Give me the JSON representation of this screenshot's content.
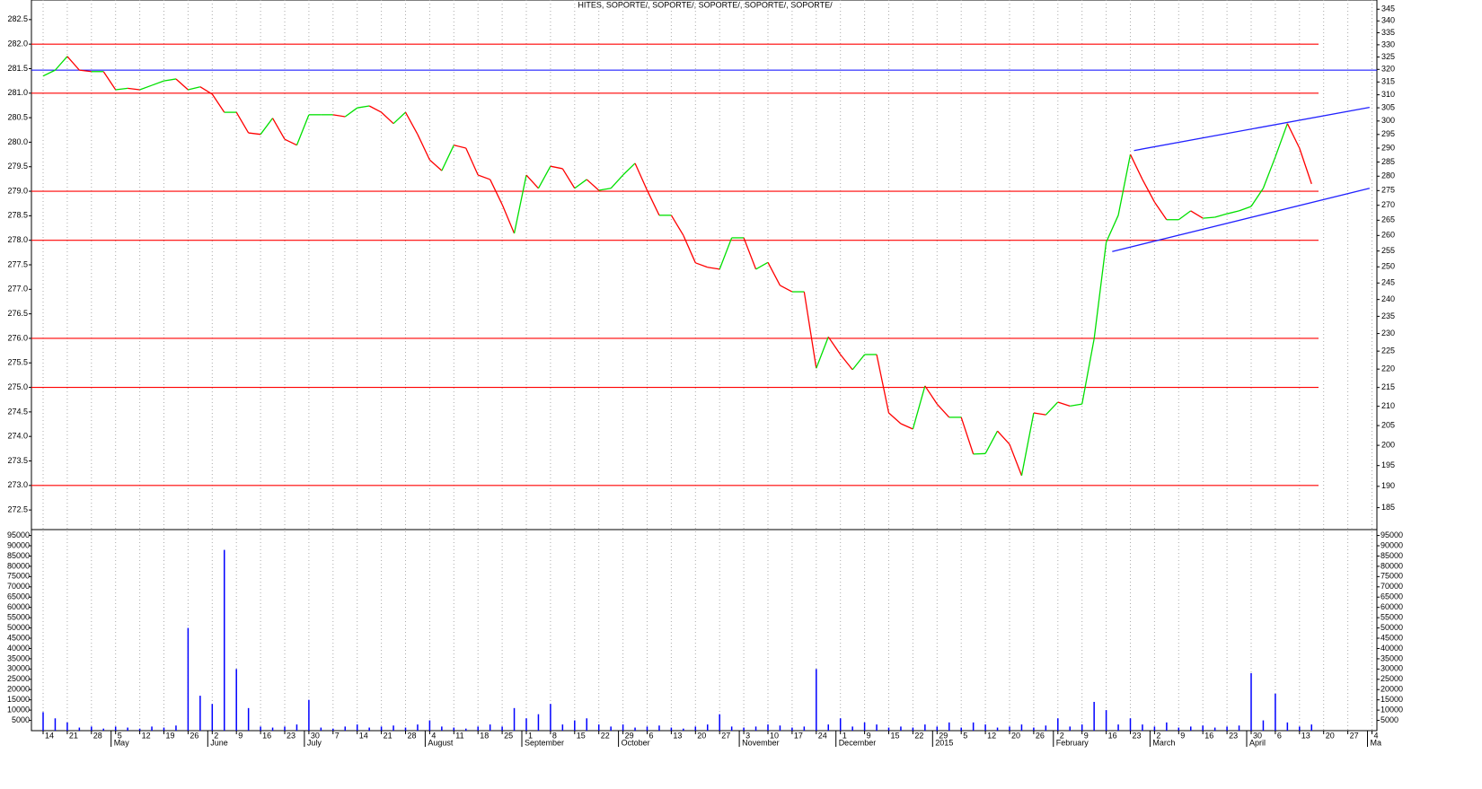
{
  "chart_data": {
    "type": "line",
    "title": "HITES, SOPORTE/, SOPORTE/, SOPORTE/, SOPORTE/, SOPORTE/",
    "categories": [
      "14",
      null,
      "21",
      null,
      "28",
      null,
      "5",
      null,
      "12",
      null,
      "19",
      null,
      "26",
      null,
      "2",
      null,
      "9",
      null,
      "16",
      null,
      "23",
      null,
      "30",
      null,
      "7",
      null,
      "14",
      null,
      "21",
      null,
      "28",
      null,
      "4",
      null,
      "11",
      null,
      "18",
      null,
      "25",
      null,
      "1",
      null,
      "8",
      null,
      "15",
      null,
      "22",
      null,
      "29",
      null,
      "6",
      null,
      "13",
      null,
      "20",
      null,
      "27",
      null,
      "3",
      null,
      "10",
      null,
      "17",
      null,
      "24",
      null,
      "1",
      null,
      "9",
      null,
      "15",
      null,
      "22",
      null,
      "29",
      null,
      "5",
      null,
      "12",
      null,
      "20",
      null,
      "26",
      null,
      "2",
      null,
      "9",
      null,
      "16",
      null,
      "23",
      null,
      "2",
      null,
      "9",
      null,
      "16",
      null,
      "23",
      null,
      "30",
      null,
      "6",
      null,
      "13",
      null,
      "20",
      null,
      "27",
      null,
      "4",
      null
    ],
    "months": [
      null,
      null,
      null,
      null,
      null,
      null,
      "May",
      null,
      null,
      null,
      null,
      null,
      null,
      null,
      "June",
      null,
      null,
      null,
      null,
      null,
      null,
      null,
      "July",
      null,
      null,
      null,
      null,
      null,
      null,
      null,
      null,
      null,
      "August",
      null,
      null,
      null,
      null,
      null,
      null,
      null,
      "September",
      null,
      null,
      null,
      null,
      null,
      null,
      null,
      "October",
      null,
      null,
      null,
      null,
      null,
      null,
      null,
      null,
      null,
      "November",
      null,
      null,
      null,
      null,
      null,
      null,
      null,
      "December",
      null,
      null,
      null,
      null,
      null,
      null,
      null,
      "2015",
      null,
      null,
      null,
      null,
      null,
      null,
      null,
      null,
      null,
      "February",
      null,
      null,
      null,
      null,
      null,
      null,
      null,
      "March",
      null,
      null,
      null,
      null,
      null,
      null,
      null,
      "April",
      null,
      null,
      null,
      null,
      null,
      null,
      null,
      null,
      null,
      "Ma",
      null
    ],
    "values": [
      281.35,
      281.47,
      281.75,
      281.47,
      281.44,
      281.44,
      281.07,
      281.1,
      281.07,
      281.16,
      281.25,
      281.29,
      281.07,
      281.13,
      280.98,
      280.61,
      280.61,
      280.19,
      280.16,
      280.49,
      280.06,
      279.94,
      280.56,
      280.56,
      280.56,
      280.52,
      280.7,
      280.74,
      280.61,
      280.38,
      280.61,
      280.16,
      279.64,
      279.42,
      279.94,
      279.88,
      279.33,
      279.24,
      278.73,
      278.14,
      279.33,
      279.06,
      279.51,
      279.46,
      279.06,
      279.24,
      279.02,
      279.06,
      279.33,
      279.57,
      279.02,
      278.51,
      278.51,
      278.1,
      277.54,
      277.45,
      277.41,
      278.05,
      278.05,
      277.41,
      277.55,
      277.08,
      276.95,
      276.95,
      275.39,
      276.03,
      275.67,
      275.36,
      275.67,
      275.67,
      274.48,
      274.26,
      274.15,
      275.03,
      274.66,
      274.39,
      274.39,
      273.64,
      273.65,
      274.11,
      273.84,
      273.2,
      274.48,
      274.44,
      274.7,
      274.62,
      274.66,
      275.99,
      277.96,
      278.51,
      279.75,
      279.24,
      278.78,
      278.42,
      278.42,
      278.6,
      278.45,
      278.47,
      278.54,
      278.6,
      278.69,
      279.06,
      279.7,
      280.38,
      279.88,
      279.15,
      null,
      null,
      null,
      null,
      null,
      null
    ],
    "up_color": "#00e000",
    "down_color": "#ff0000",
    "ylim": [
      272.1,
      282.9
    ],
    "yticks": [
      272.5,
      {
        "value": 273,
        "label": "273.0"
      },
      273.5,
      {
        "value": 274,
        "label": "274.0"
      },
      274.5,
      {
        "value": 275,
        "label": "275.0"
      },
      275.5,
      {
        "value": 276,
        "label": "276.0"
      },
      276.5,
      {
        "value": 277,
        "label": "277.0"
      },
      277.5,
      {
        "value": 278,
        "label": "278.0"
      },
      278.5,
      {
        "value": 279,
        "label": "279.0"
      },
      279.5,
      {
        "value": 280,
        "label": "280.0"
      },
      280.5,
      {
        "value": 281,
        "label": "281.0"
      },
      281.5,
      {
        "value": 282,
        "label": "282.0"
      },
      282.5
    ],
    "y2lim": [
      180,
      349
    ],
    "y2_log": true,
    "y2ticks": [
      185,
      190,
      195,
      200,
      205,
      210,
      215,
      220,
      225,
      230,
      235,
      240,
      245,
      250,
      255,
      260,
      265,
      270,
      275,
      280,
      285,
      290,
      295,
      300,
      305,
      310,
      315,
      320,
      325,
      330,
      335,
      340,
      345
    ],
    "support_levels": [
      282,
      281,
      279,
      278,
      276,
      275,
      273
    ],
    "support_color": "#ff0000",
    "resistance_levels": [
      281.47
    ],
    "resistance_color": "#0000ff",
    "trendlines": [
      {
        "x": [
          90.3,
          109.8
        ],
        "y": [
          279.83,
          280.71
        ]
      },
      {
        "x": [
          88.5,
          109.8
        ],
        "y": [
          277.77,
          279.06
        ]
      }
    ],
    "trendline_color": "#2020ff",
    "grid": true,
    "volume": {
      "type": "bar",
      "color": "#0000ff",
      "ylim": [
        0,
        97000
      ],
      "yticks": [
        5000,
        10000,
        15000,
        20000,
        25000,
        30000,
        35000,
        40000,
        45000,
        50000,
        55000,
        60000,
        65000,
        70000,
        75000,
        80000,
        85000,
        90000,
        95000
      ],
      "values": [
        9000,
        6000,
        4000,
        1500,
        2000,
        1000,
        2000,
        1500,
        1000,
        2000,
        1500,
        2500,
        50000,
        17000,
        13000,
        88000,
        30000,
        11000,
        2000,
        1500,
        2000,
        3000,
        15000,
        1500,
        1000,
        2000,
        3000,
        1500,
        2000,
        2500,
        1500,
        3000,
        5000,
        2000,
        1500,
        1000,
        2000,
        3000,
        2000,
        11000,
        6000,
        8000,
        13000,
        3000,
        5000,
        6000,
        3000,
        2000,
        3000,
        1500,
        2000,
        2500,
        1500,
        1000,
        2000,
        3000,
        8000,
        2000,
        1500,
        2000,
        3000,
        2500,
        1500,
        2000,
        30000,
        3000,
        6000,
        2000,
        4000,
        3000,
        1500,
        2000,
        1500,
        3000,
        2000,
        4000,
        1500,
        4000,
        3000,
        1500,
        2000,
        3000,
        1500,
        2500,
        6000,
        2000,
        3000,
        14000,
        10000,
        3000,
        6000,
        3000,
        2000,
        4000,
        1500,
        2000,
        2500,
        1500,
        2000,
        2500,
        28000,
        5000,
        18000,
        4000,
        2000,
        3000,
        null,
        null,
        null,
        null,
        null,
        null
      ]
    }
  }
}
